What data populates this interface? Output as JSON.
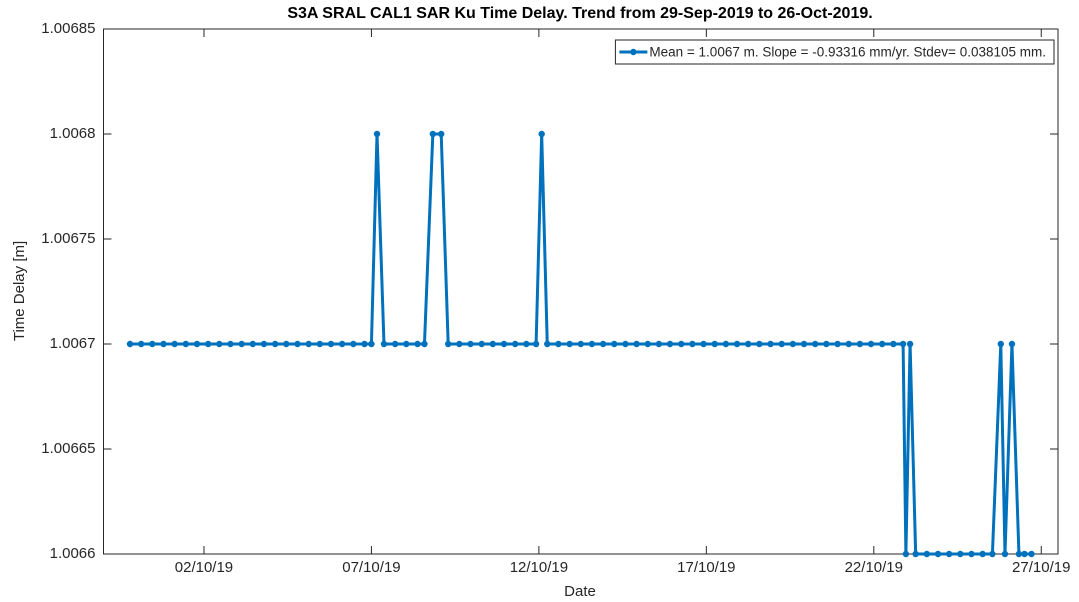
{
  "chart_data": {
    "type": "line",
    "title": "S3A SRAL CAL1 SAR Ku Time Delay. Trend from 29-Sep-2019 to 26-Oct-2019.",
    "x_label": "Date",
    "y_label": "Time Delay [m]",
    "x": [
      "2019-09-29T19:00",
      "2019-09-30T03:00",
      "2019-09-30T11:00",
      "2019-09-30T19:00",
      "2019-10-01T03:00",
      "2019-10-01T11:00",
      "2019-10-01T19:00",
      "2019-10-02T03:00",
      "2019-10-02T11:00",
      "2019-10-02T19:00",
      "2019-10-03T03:00",
      "2019-10-03T11:00",
      "2019-10-03T19:00",
      "2019-10-04T03:00",
      "2019-10-04T11:00",
      "2019-10-04T19:00",
      "2019-10-05T03:00",
      "2019-10-05T11:00",
      "2019-10-05T19:00",
      "2019-10-06T03:00",
      "2019-10-06T11:00",
      "2019-10-06T19:00",
      "2019-10-07T00:00",
      "2019-10-07T04:00",
      "2019-10-07T09:00",
      "2019-10-07T17:00",
      "2019-10-08T01:00",
      "2019-10-08T09:00",
      "2019-10-08T14:00",
      "2019-10-08T20:00",
      "2019-10-09T02:00",
      "2019-10-09T07:00",
      "2019-10-09T15:00",
      "2019-10-09T23:00",
      "2019-10-10T07:00",
      "2019-10-10T15:00",
      "2019-10-10T23:00",
      "2019-10-11T07:00",
      "2019-10-11T15:00",
      "2019-10-11T22:00",
      "2019-10-12T02:00",
      "2019-10-12T06:00",
      "2019-10-12T14:00",
      "2019-10-12T22:00",
      "2019-10-13T06:00",
      "2019-10-13T14:00",
      "2019-10-13T22:00",
      "2019-10-14T06:00",
      "2019-10-14T14:00",
      "2019-10-14T22:00",
      "2019-10-15T06:00",
      "2019-10-15T14:00",
      "2019-10-15T22:00",
      "2019-10-16T06:00",
      "2019-10-16T14:00",
      "2019-10-16T22:00",
      "2019-10-17T06:00",
      "2019-10-17T14:00",
      "2019-10-17T22:00",
      "2019-10-18T06:00",
      "2019-10-18T14:00",
      "2019-10-18T22:00",
      "2019-10-19T06:00",
      "2019-10-19T14:00",
      "2019-10-19T22:00",
      "2019-10-20T06:00",
      "2019-10-20T14:00",
      "2019-10-20T22:00",
      "2019-10-21T06:00",
      "2019-10-21T14:00",
      "2019-10-21T22:00",
      "2019-10-22T06:00",
      "2019-10-22T14:00",
      "2019-10-22T21:00",
      "2019-10-22T23:00",
      "2019-10-23T02:00",
      "2019-10-23T06:00",
      "2019-10-23T14:00",
      "2019-10-23T22:00",
      "2019-10-24T06:00",
      "2019-10-24T14:00",
      "2019-10-24T22:00",
      "2019-10-25T06:00",
      "2019-10-25T13:00",
      "2019-10-25T19:00",
      "2019-10-25T22:00",
      "2019-10-26T03:00",
      "2019-10-26T08:00",
      "2019-10-26T12:00",
      "2019-10-26T17:00"
    ],
    "series": [
      {
        "name": "Mean = 1.0067 m. Slope = -0.93316 mm/yr. Stdev= 0.038105 mm.",
        "color": "#0072bd",
        "values": [
          1.0067,
          1.0067,
          1.0067,
          1.0067,
          1.0067,
          1.0067,
          1.0067,
          1.0067,
          1.0067,
          1.0067,
          1.0067,
          1.0067,
          1.0067,
          1.0067,
          1.0067,
          1.0067,
          1.0067,
          1.0067,
          1.0067,
          1.0067,
          1.0067,
          1.0067,
          1.0067,
          1.0068,
          1.0067,
          1.0067,
          1.0067,
          1.0067,
          1.0067,
          1.0068,
          1.0068,
          1.0067,
          1.0067,
          1.0067,
          1.0067,
          1.0067,
          1.0067,
          1.0067,
          1.0067,
          1.0067,
          1.0068,
          1.0067,
          1.0067,
          1.0067,
          1.0067,
          1.0067,
          1.0067,
          1.0067,
          1.0067,
          1.0067,
          1.0067,
          1.0067,
          1.0067,
          1.0067,
          1.0067,
          1.0067,
          1.0067,
          1.0067,
          1.0067,
          1.0067,
          1.0067,
          1.0067,
          1.0067,
          1.0067,
          1.0067,
          1.0067,
          1.0067,
          1.0067,
          1.0067,
          1.0067,
          1.0067,
          1.0067,
          1.0067,
          1.0067,
          1.0066,
          1.0067,
          1.0066,
          1.0066,
          1.0066,
          1.0066,
          1.0066,
          1.0066,
          1.0066,
          1.0066,
          1.0067,
          1.0066,
          1.0067,
          1.0066,
          1.0066,
          1.0066
        ]
      }
    ],
    "xlim": [
      "2019-09-29T00:00",
      "2019-10-27T12:00"
    ],
    "xticks": [
      {
        "value": "2019-10-02T00:00",
        "label": "02/10/19"
      },
      {
        "value": "2019-10-07T00:00",
        "label": "07/10/19"
      },
      {
        "value": "2019-10-12T00:00",
        "label": "12/10/19"
      },
      {
        "value": "2019-10-17T00:00",
        "label": "17/10/19"
      },
      {
        "value": "2019-10-22T00:00",
        "label": "22/10/19"
      },
      {
        "value": "2019-10-27T00:00",
        "label": "27/10/19"
      }
    ],
    "ylim": [
      1.0066,
      1.00685
    ],
    "yticks": [
      1.0066,
      1.00665,
      1.0067,
      1.00675,
      1.0068,
      1.00685
    ],
    "grid": false,
    "legend": "upper right"
  }
}
